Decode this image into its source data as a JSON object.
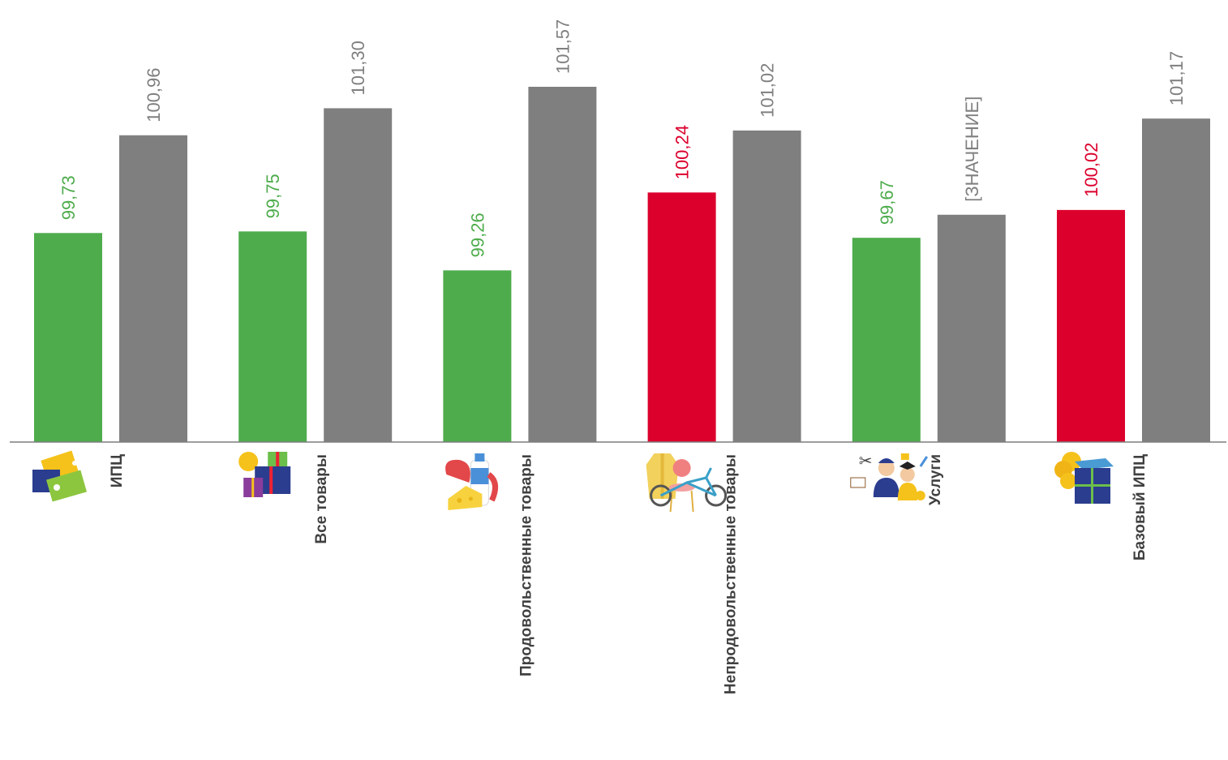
{
  "chart_data": {
    "type": "bar",
    "title": "",
    "xlabel": "",
    "ylabel": "",
    "categories": [
      "ИПЦ",
      "Все товары",
      "Продовольственные товары",
      "Непродовольственные товары",
      "Услуги",
      "Базовый ИПЦ"
    ],
    "icons": [
      "price-tags-icon",
      "gift-boxes-icon",
      "groceries-icon",
      "nonfood-goods-icon",
      "services-people-icon",
      "coins-box-icon"
    ],
    "series": [
      {
        "values": [
          99.73,
          99.75,
          99.26,
          100.24,
          99.67,
          100.02
        ],
        "labels": [
          "99,73",
          "99,75",
          "99,26",
          "100,24",
          "99,67",
          "100,02"
        ],
        "colors": [
          "#4eac4c",
          "#4eac4c",
          "#4eac4c",
          "#dc002d",
          "#4eac4c",
          "#dc002d"
        ]
      },
      {
        "values": [
          100.96,
          101.3,
          101.57,
          101.02,
          99.96,
          101.17
        ],
        "labels": [
          "100,96",
          "101,30",
          "101,57",
          "101,02",
          "[ЗНАЧЕНИЕ]",
          "101,17"
        ],
        "colors": [
          "#7f7f7f",
          "#7f7f7f",
          "#7f7f7f",
          "#7f7f7f",
          "#7f7f7f",
          "#7f7f7f"
        ]
      }
    ],
    "ylim": [
      97.1,
      101.57
    ],
    "grid": false,
    "legend": "none"
  },
  "colors": {
    "green": "#4eac4c",
    "red": "#dc002d",
    "gray": "#7f7f7f",
    "axis": "#7f7f7f"
  }
}
